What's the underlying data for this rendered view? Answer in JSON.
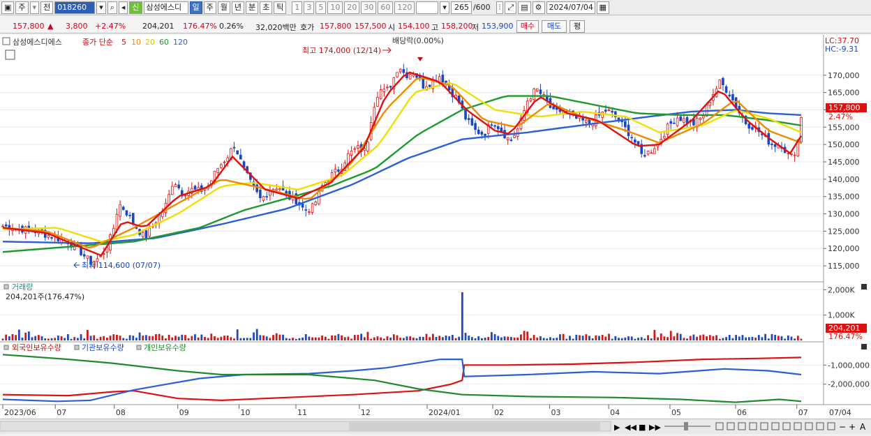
{
  "toolbar": {
    "period_label": "주",
    "prev_label": "전",
    "stock_code": "018260",
    "stock_name": "삼성에스디",
    "stock_tag": "신",
    "period_tabs": [
      "일",
      "주",
      "월",
      "년",
      "분",
      "초",
      "틱"
    ],
    "active_period": "일",
    "interval_buttons": [
      "1",
      "3",
      "5",
      "10",
      "20",
      "30",
      "60",
      "120"
    ],
    "count_display": "265",
    "count_total": "/600",
    "date_value": "2024/07/04"
  },
  "quote": {
    "price": "157,800",
    "price_arrow": "▲",
    "change": "3,800",
    "change_pct": "+2.47%",
    "volume": "204,201",
    "volume_ratio": "176.47%",
    "turnover_pct": "0.26%",
    "trade_value": "32,020백만",
    "bid_label": "호가",
    "bid1": "157,800",
    "bid2": "157,500",
    "open_label": "시",
    "open": "154,100",
    "high_label": "고",
    "high": "158,200",
    "low_label": "저",
    "low": "153,900",
    "buy_label": "매수",
    "sell_label": "매도",
    "eval_label": "평"
  },
  "chart_data": {
    "type": "candlestick",
    "stock_name": "삼성에스디에스",
    "legend": {
      "title": "종가 단순",
      "ma_periods": [
        "5",
        "10",
        "20",
        "60",
        "120"
      ],
      "ma_colors": [
        "#e01010",
        "#f08a00",
        "#f0e000",
        "#1f9a2e",
        "#2b5fd8"
      ]
    },
    "y_axis": {
      "ticks": [
        "170,000",
        "165,000",
        "160,000",
        "155,000",
        "150,000",
        "145,000",
        "140,000",
        "135,000",
        "130,000",
        "125,000",
        "120,000",
        "115,000"
      ],
      "tick_values": [
        170000,
        165000,
        160000,
        155000,
        150000,
        145000,
        140000,
        135000,
        130000,
        125000,
        120000,
        115000
      ],
      "ylim": [
        112000,
        178000
      ],
      "current_price_label": "157,800",
      "current_pct_label": "2.47%",
      "lc_label": "LC:37.70",
      "hc_label": "HC:-9.31"
    },
    "x_axis": {
      "labels": [
        "2023/06",
        "07",
        "08",
        "09",
        "10",
        "11",
        "12",
        "2024/01",
        "02",
        "03",
        "04",
        "05",
        "06",
        "07",
        "07/04"
      ]
    },
    "annotations": {
      "high": "최고 174,000 (12/14)",
      "low": "최저 114,600 (07/07)",
      "dividend": "배당락(0.00%)"
    },
    "price_path": [
      [
        0,
        126500
      ],
      [
        5,
        126000
      ],
      [
        10,
        125500
      ],
      [
        15,
        125000
      ],
      [
        20,
        124000
      ],
      [
        25,
        123000
      ],
      [
        30,
        122000
      ],
      [
        35,
        119500
      ],
      [
        40,
        116000
      ],
      [
        45,
        117500
      ],
      [
        50,
        124000
      ],
      [
        53,
        133000
      ],
      [
        56,
        131000
      ],
      [
        60,
        127000
      ],
      [
        65,
        123000
      ],
      [
        70,
        128000
      ],
      [
        75,
        133000
      ],
      [
        78,
        140000
      ],
      [
        82,
        136000
      ],
      [
        86,
        137000
      ],
      [
        90,
        136500
      ],
      [
        94,
        138000
      ],
      [
        98,
        143000
      ],
      [
        102,
        146000
      ],
      [
        106,
        150000
      ],
      [
        110,
        143000
      ],
      [
        114,
        138000
      ],
      [
        118,
        134000
      ],
      [
        122,
        137000
      ],
      [
        126,
        138000
      ],
      [
        130,
        135000
      ],
      [
        134,
        134000
      ],
      [
        138,
        131000
      ],
      [
        142,
        132000
      ],
      [
        146,
        138000
      ],
      [
        150,
        141000
      ],
      [
        154,
        143000
      ],
      [
        158,
        147000
      ],
      [
        162,
        149000
      ],
      [
        166,
        148000
      ],
      [
        169,
        160000
      ],
      [
        172,
        166000
      ],
      [
        175,
        165000
      ],
      [
        178,
        168000
      ],
      [
        181,
        173000
      ],
      [
        184,
        170000
      ],
      [
        188,
        171000
      ],
      [
        192,
        167000
      ],
      [
        196,
        168000
      ],
      [
        200,
        170000
      ],
      [
        204,
        166000
      ],
      [
        208,
        163000
      ],
      [
        212,
        157000
      ],
      [
        216,
        154000
      ],
      [
        220,
        153000
      ],
      [
        224,
        157000
      ],
      [
        228,
        154000
      ],
      [
        232,
        151000
      ],
      [
        236,
        155000
      ],
      [
        240,
        163000
      ],
      [
        244,
        166000
      ],
      [
        248,
        163000
      ],
      [
        252,
        159000
      ],
      [
        256,
        160000
      ],
      [
        260,
        158000
      ],
      [
        264,
        157000
      ],
      [
        268,
        156000
      ],
      [
        272,
        158000
      ],
      [
        276,
        160000
      ],
      [
        280,
        158000
      ],
      [
        284,
        155000
      ],
      [
        288,
        152000
      ],
      [
        292,
        147000
      ],
      [
        296,
        148000
      ],
      [
        300,
        151000
      ],
      [
        304,
        155000
      ],
      [
        308,
        158000
      ],
      [
        312,
        157000
      ],
      [
        316,
        156000
      ],
      [
        320,
        158000
      ],
      [
        324,
        164000
      ],
      [
        328,
        168000
      ],
      [
        332,
        165000
      ],
      [
        336,
        160000
      ],
      [
        340,
        156000
      ],
      [
        344,
        155000
      ],
      [
        348,
        152000
      ],
      [
        352,
        150000
      ],
      [
        356,
        150000
      ],
      [
        360,
        146000
      ],
      [
        363,
        149000
      ],
      [
        365,
        157800
      ]
    ],
    "ma5": [
      [
        0,
        126000
      ],
      [
        20,
        124500
      ],
      [
        35,
        120500
      ],
      [
        45,
        118000
      ],
      [
        55,
        128000
      ],
      [
        65,
        126000
      ],
      [
        80,
        135000
      ],
      [
        95,
        138000
      ],
      [
        105,
        146500
      ],
      [
        120,
        137000
      ],
      [
        135,
        134500
      ],
      [
        150,
        139000
      ],
      [
        165,
        149000
      ],
      [
        175,
        164000
      ],
      [
        185,
        171000
      ],
      [
        200,
        168000
      ],
      [
        212,
        160000
      ],
      [
        225,
        154000
      ],
      [
        232,
        153000
      ],
      [
        245,
        164000
      ],
      [
        258,
        159000
      ],
      [
        272,
        157000
      ],
      [
        290,
        149500
      ],
      [
        300,
        150000
      ],
      [
        315,
        157000
      ],
      [
        328,
        166000
      ],
      [
        340,
        157000
      ],
      [
        352,
        151000
      ],
      [
        360,
        147500
      ],
      [
        365,
        152500
      ]
    ],
    "ma10": [
      [
        0,
        126000
      ],
      [
        20,
        125000
      ],
      [
        40,
        120000
      ],
      [
        60,
        126000
      ],
      [
        80,
        133000
      ],
      [
        100,
        140000
      ],
      [
        118,
        137500
      ],
      [
        140,
        134000
      ],
      [
        160,
        145000
      ],
      [
        175,
        160000
      ],
      [
        190,
        169500
      ],
      [
        205,
        167000
      ],
      [
        220,
        157000
      ],
      [
        235,
        155000
      ],
      [
        250,
        162000
      ],
      [
        265,
        158000
      ],
      [
        285,
        154000
      ],
      [
        300,
        150500
      ],
      [
        320,
        156000
      ],
      [
        335,
        163000
      ],
      [
        350,
        154000
      ],
      [
        365,
        150500
      ]
    ],
    "ma20": [
      [
        0,
        125500
      ],
      [
        25,
        126000
      ],
      [
        45,
        122000
      ],
      [
        60,
        124000
      ],
      [
        80,
        130000
      ],
      [
        100,
        138000
      ],
      [
        115,
        139000
      ],
      [
        135,
        137000
      ],
      [
        155,
        141000
      ],
      [
        172,
        150000
      ],
      [
        188,
        165000
      ],
      [
        205,
        168000
      ],
      [
        225,
        160000
      ],
      [
        245,
        158000
      ],
      [
        265,
        159500
      ],
      [
        285,
        158000
      ],
      [
        300,
        153500
      ],
      [
        320,
        155500
      ],
      [
        335,
        160000
      ],
      [
        350,
        157500
      ],
      [
        365,
        153500
      ]
    ],
    "ma60": [
      [
        0,
        119000
      ],
      [
        30,
        120500
      ],
      [
        60,
        122000
      ],
      [
        90,
        126000
      ],
      [
        110,
        131000
      ],
      [
        130,
        134500
      ],
      [
        150,
        138000
      ],
      [
        170,
        143000
      ],
      [
        190,
        153000
      ],
      [
        210,
        160000
      ],
      [
        230,
        164000
      ],
      [
        250,
        164000
      ],
      [
        270,
        161500
      ],
      [
        290,
        159000
      ],
      [
        310,
        158500
      ],
      [
        330,
        158500
      ],
      [
        350,
        157000
      ],
      [
        365,
        155500
      ]
    ],
    "ma120": [
      [
        0,
        122000
      ],
      [
        40,
        121500
      ],
      [
        70,
        123000
      ],
      [
        100,
        127000
      ],
      [
        130,
        131500
      ],
      [
        160,
        138500
      ],
      [
        185,
        146000
      ],
      [
        210,
        151500
      ],
      [
        240,
        153500
      ],
      [
        270,
        156000
      ],
      [
        295,
        158000
      ],
      [
        315,
        159500
      ],
      [
        335,
        160000
      ],
      [
        350,
        159000
      ],
      [
        365,
        158500
      ]
    ],
    "volume": {
      "title": "거래량",
      "current": "204,201주(176.47%)",
      "ticks": [
        "2,000K",
        "1,000K"
      ],
      "tick_values": [
        2000000,
        1000000
      ],
      "ylim": [
        0,
        2200000
      ],
      "current_label": "204,201",
      "current_pct_label": "176.47%",
      "spike_index": 210,
      "spike_value": 1900000
    },
    "holdings": {
      "series_names": [
        "외국인보유수량",
        "기관보유수량",
        "개인보유수량"
      ],
      "colors": [
        "#e01010",
        "#2b5fd8",
        "#1f8a2e"
      ],
      "ticks": [
        "-1,000,000",
        "-2,000,000"
      ],
      "tick_values": [
        -1000000,
        -2000000
      ],
      "ylim": [
        -3000000,
        0
      ],
      "foreign": [
        [
          0,
          -2550000
        ],
        [
          30,
          -2600000
        ],
        [
          50,
          -2400000
        ],
        [
          60,
          -2350000
        ],
        [
          80,
          -2750000
        ],
        [
          100,
          -2850000
        ],
        [
          130,
          -2700000
        ],
        [
          160,
          -2550000
        ],
        [
          190,
          -2350000
        ],
        [
          205,
          -2000000
        ],
        [
          210,
          -1800000
        ],
        [
          211,
          -1000000
        ],
        [
          230,
          -1000000
        ],
        [
          260,
          -950000
        ],
        [
          290,
          -850000
        ],
        [
          320,
          -700000
        ],
        [
          345,
          -650000
        ],
        [
          365,
          -600000
        ]
      ],
      "institution": [
        [
          0,
          -2800000
        ],
        [
          25,
          -2900000
        ],
        [
          40,
          -2850000
        ],
        [
          60,
          -2300000
        ],
        [
          75,
          -2000000
        ],
        [
          90,
          -1700000
        ],
        [
          110,
          -1500000
        ],
        [
          140,
          -1450000
        ],
        [
          160,
          -1300000
        ],
        [
          175,
          -1150000
        ],
        [
          200,
          -700000
        ],
        [
          210,
          -700000
        ],
        [
          211,
          -1600000
        ],
        [
          240,
          -1500000
        ],
        [
          270,
          -1350000
        ],
        [
          300,
          -1450000
        ],
        [
          330,
          -1200000
        ],
        [
          350,
          -1300000
        ],
        [
          365,
          -1500000
        ]
      ],
      "individual": [
        [
          0,
          -450000
        ],
        [
          30,
          -700000
        ],
        [
          50,
          -900000
        ],
        [
          80,
          -1300000
        ],
        [
          100,
          -1500000
        ],
        [
          140,
          -1500000
        ],
        [
          170,
          -1800000
        ],
        [
          190,
          -2250000
        ],
        [
          210,
          -2550000
        ],
        [
          240,
          -2650000
        ],
        [
          280,
          -2700000
        ],
        [
          310,
          -2800000
        ],
        [
          335,
          -2950000
        ],
        [
          355,
          -2800000
        ],
        [
          365,
          -2900000
        ]
      ]
    }
  },
  "bottom_bar": {
    "controls": [
      "▶",
      "◀◀",
      "■",
      "▶▶"
    ],
    "zoom_minus": "−",
    "zoom_plus": "+",
    "auto_label": "A"
  }
}
